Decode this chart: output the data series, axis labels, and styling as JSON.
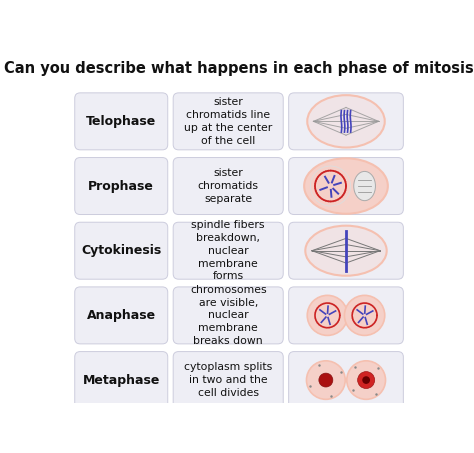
{
  "title": "Can you describe what happens in each phase of mitosis?",
  "title_fontsize": 10.5,
  "background_color": "#ffffff",
  "card_bg": "#eeeef5",
  "card_edge": "#ccccdd",
  "rows": [
    {
      "phase": "Telophase",
      "description": "sister\nchromatids line\nup at the center\nof the cell"
    },
    {
      "phase": "Prophase",
      "description": "sister\nchromatids\nseparate"
    },
    {
      "phase": "Cytokinesis",
      "description": "spindle fibers\nbreakdown,\nnuclear\nmembrane\nforms"
    },
    {
      "phase": "Anaphase",
      "description": "chromosomes\nare visible,\nnuclear\nmembrane\nbreaks down"
    },
    {
      "phase": "Metaphase",
      "description": "cytoplasm splits\nin two and the\ncell divides"
    }
  ],
  "cell_outer": "#f5c0b0",
  "cell_fill": "#f5d0c8",
  "spindle_color": "#999999",
  "chromatid_blue": "#4444bb",
  "chromatid_red": "#cc3333",
  "nucleus_red": "#cc2222"
}
